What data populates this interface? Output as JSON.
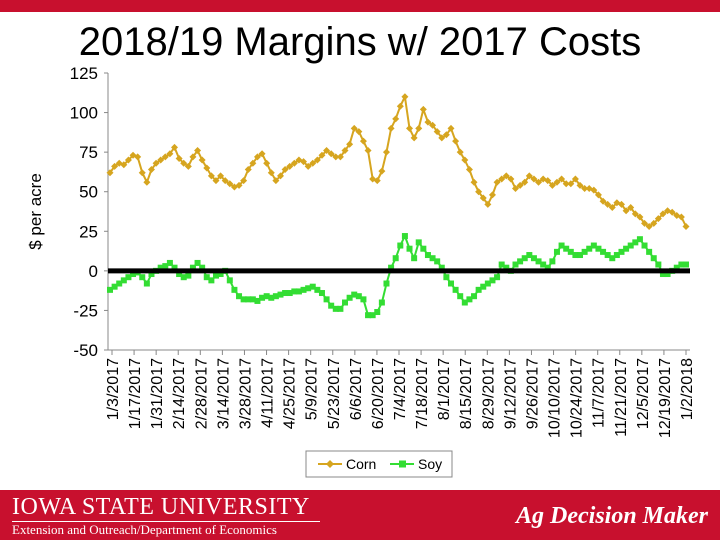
{
  "slide": {
    "title": "2018/19 Margins w/ 2017 Costs",
    "footer_name": "IOWA STATE UNIVERSITY",
    "footer_dept": "Extension and Outreach/Department of Economics",
    "footer_brand": "Ag Decision Maker"
  },
  "colors": {
    "brand_red": "#c8102e",
    "corn": "#d6a51f",
    "soy": "#33dd33",
    "zero_line": "#000000"
  },
  "chart_data": {
    "type": "line",
    "title": "",
    "xlabel": "",
    "ylabel": "$ per acre",
    "ylim": [
      -50,
      125
    ],
    "yticks": [
      -50,
      -25,
      0,
      25,
      50,
      75,
      100,
      125
    ],
    "grid": false,
    "legend_position": "bottom",
    "zero_line": true,
    "x_ticks": [
      "1/3/2017",
      "1/17/2017",
      "1/31/2017",
      "2/14/2017",
      "2/28/2017",
      "3/14/2017",
      "3/28/2017",
      "4/11/2017",
      "4/25/2017",
      "5/9/2017",
      "5/23/2017",
      "6/6/2017",
      "6/20/2017",
      "7/4/2017",
      "7/18/2017",
      "8/1/2017",
      "8/15/2017",
      "8/29/2017",
      "9/12/2017",
      "9/26/2017",
      "10/10/2017",
      "10/24/2017",
      "11/7/2017",
      "11/21/2017",
      "12/5/2017",
      "12/19/2017",
      "1/2/2018"
    ],
    "series": [
      {
        "name": "Corn",
        "values": [
          62,
          66,
          68,
          67,
          70,
          73,
          72,
          62,
          56,
          64,
          68,
          70,
          72,
          74,
          78,
          71,
          68,
          66,
          72,
          76,
          70,
          65,
          60,
          57,
          60,
          57,
          55,
          53,
          54,
          57,
          64,
          68,
          72,
          74,
          68,
          62,
          57,
          60,
          64,
          66,
          68,
          70,
          69,
          66,
          68,
          70,
          73,
          76,
          74,
          72,
          72,
          76,
          80,
          90,
          88,
          82,
          76,
          58,
          57,
          63,
          75,
          90,
          96,
          104,
          110,
          90,
          84,
          90,
          102,
          94,
          92,
          88,
          84,
          86,
          90,
          82,
          75,
          70,
          64,
          56,
          50,
          46,
          42,
          48,
          56,
          58,
          60,
          58,
          52,
          54,
          56,
          60,
          58,
          56,
          58,
          57,
          54,
          56,
          58,
          55,
          55,
          58,
          54,
          52,
          52,
          51,
          48,
          44,
          42,
          40,
          43,
          42,
          38,
          40,
          36,
          34,
          30,
          28,
          30,
          33,
          36,
          38,
          37,
          35,
          34,
          28
        ]
      },
      {
        "name": "Soy",
        "values": [
          -12,
          -10,
          -8,
          -6,
          -4,
          -2,
          -1,
          -4,
          -8,
          -2,
          0,
          2,
          3,
          5,
          2,
          -2,
          -4,
          -3,
          2,
          5,
          2,
          -4,
          -6,
          -3,
          -2,
          0,
          -6,
          -12,
          -16,
          -18,
          -18,
          -18,
          -19,
          -17,
          -16,
          -17,
          -16,
          -15,
          -14,
          -14,
          -13,
          -13,
          -12,
          -11,
          -10,
          -12,
          -14,
          -18,
          -22,
          -24,
          -24,
          -20,
          -17,
          -15,
          -16,
          -18,
          -28,
          -28,
          -26,
          -20,
          -8,
          2,
          8,
          16,
          22,
          14,
          8,
          18,
          14,
          10,
          8,
          6,
          2,
          -4,
          -8,
          -12,
          -16,
          -20,
          -18,
          -16,
          -12,
          -10,
          -8,
          -6,
          -4,
          4,
          2,
          0,
          4,
          6,
          8,
          10,
          8,
          6,
          4,
          2,
          6,
          12,
          16,
          14,
          12,
          10,
          10,
          12,
          14,
          16,
          14,
          12,
          10,
          8,
          10,
          12,
          14,
          16,
          18,
          20,
          16,
          12,
          8,
          4,
          -2,
          -2,
          0,
          2,
          4,
          4
        ]
      }
    ]
  }
}
